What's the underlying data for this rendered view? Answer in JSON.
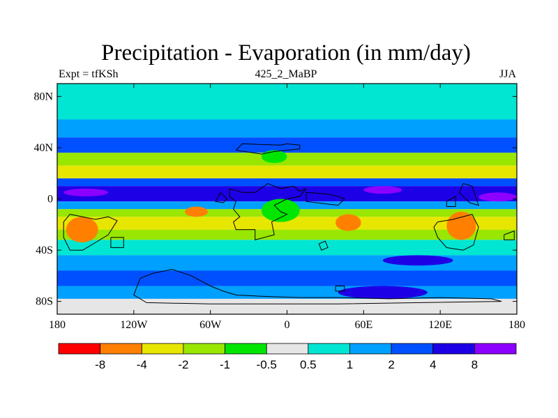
{
  "chart_data": {
    "type": "heatmap",
    "title": "Precipitation - Evaporation (in mm/day)",
    "subtitle_left": "Expt = tfKSh",
    "subtitle_center": "425_2_MaBP",
    "subtitle_right": "JJA",
    "x_range": [
      -180,
      180
    ],
    "y_range": [
      -90,
      90
    ],
    "x_ticks": [
      {
        "value": -180,
        "label": "180"
      },
      {
        "value": -120,
        "label": "120W"
      },
      {
        "value": -60,
        "label": "60W"
      },
      {
        "value": 0,
        "label": "0"
      },
      {
        "value": 60,
        "label": "60E"
      },
      {
        "value": 120,
        "label": "120E"
      },
      {
        "value": 180,
        "label": "180"
      }
    ],
    "y_ticks": [
      {
        "value": 80,
        "label": "80N"
      },
      {
        "value": 40,
        "label": "40N"
      },
      {
        "value": 0,
        "label": "0"
      },
      {
        "value": -40,
        "label": "40S"
      },
      {
        "value": -80,
        "label": "80S"
      }
    ],
    "colorbar": {
      "colors": [
        "#ff0000",
        "#ff7f00",
        "#e6e600",
        "#99e600",
        "#00e600",
        "#e6e6e6",
        "#00e6d2",
        "#00a0ff",
        "#0050ff",
        "#1e00e6",
        "#8c00ff"
      ],
      "labels": [
        "-8",
        "-4",
        "-2",
        "-1",
        "-0.5",
        "0.5",
        "1",
        "2",
        "4",
        "8"
      ],
      "levels": [
        -8,
        -4,
        -2,
        -1,
        -0.5,
        0.5,
        1,
        2,
        4,
        8
      ]
    },
    "zonal_bands": [
      {
        "lat_range": [
          62,
          90
        ],
        "value": 0.6
      },
      {
        "lat_range": [
          48,
          62
        ],
        "value": 1.5
      },
      {
        "lat_range": [
          36,
          48
        ],
        "value": 3
      },
      {
        "lat_range": [
          26,
          36
        ],
        "value": -1.3
      },
      {
        "lat_range": [
          16,
          26
        ],
        "value": -2.4
      },
      {
        "lat_range": [
          10,
          16
        ],
        "value": 2.5
      },
      {
        "lat_range": [
          -2,
          10
        ],
        "value": 6
      },
      {
        "lat_range": [
          -8,
          -2
        ],
        "value": 1.5
      },
      {
        "lat_range": [
          -14,
          -8
        ],
        "value": -1.3
      },
      {
        "lat_range": [
          -24,
          -14
        ],
        "value": -3
      },
      {
        "lat_range": [
          -32,
          -24
        ],
        "value": -1.5
      },
      {
        "lat_range": [
          -44,
          -32
        ],
        "value": 0.7
      },
      {
        "lat_range": [
          -56,
          -44
        ],
        "value": 1.5
      },
      {
        "lat_range": [
          -68,
          -56
        ],
        "value": 3
      },
      {
        "lat_range": [
          -78,
          -68
        ],
        "value": 1.5
      },
      {
        "lat_range": [
          -90,
          -78
        ],
        "value": 0.3
      }
    ],
    "features": [
      {
        "name": "dry-cell",
        "value": -5,
        "lon_range": [
          -173,
          -148
        ],
        "lat_range": [
          -34,
          -14
        ]
      },
      {
        "name": "dry-cell",
        "value": -5,
        "lon_range": [
          -80,
          -62
        ],
        "lat_range": [
          -14,
          -6
        ]
      },
      {
        "name": "dry-cell",
        "value": -5,
        "lon_range": [
          38,
          58
        ],
        "lat_range": [
          -25,
          -12
        ]
      },
      {
        "name": "dry-cell",
        "value": -5,
        "lon_range": [
          125,
          148
        ],
        "lat_range": [
          -32,
          -10
        ]
      },
      {
        "name": "wet-cell",
        "value": 9,
        "lon_range": [
          -175,
          -140
        ],
        "lat_range": [
          2,
          8
        ]
      },
      {
        "name": "wet-cell",
        "value": 9,
        "lon_range": [
          60,
          90
        ],
        "lat_range": [
          4,
          10
        ]
      },
      {
        "name": "wet-cell",
        "value": 9,
        "lon_range": [
          150,
          180
        ],
        "lat_range": [
          -2,
          5
        ]
      },
      {
        "name": "wet-patch",
        "value": 5,
        "lon_range": [
          75,
          130
        ],
        "lat_range": [
          -52,
          -44
        ]
      },
      {
        "name": "wet-patch",
        "value": 5,
        "lon_range": [
          40,
          110
        ],
        "lat_range": [
          -78,
          -68
        ]
      },
      {
        "name": "green-patch",
        "value": -0.7,
        "lon_range": [
          -20,
          10
        ],
        "lat_range": [
          -18,
          0
        ]
      },
      {
        "name": "green-patch",
        "value": -0.7,
        "lon_range": [
          -20,
          0
        ],
        "lat_range": [
          28,
          38
        ]
      }
    ],
    "coastlines": [
      [
        [
          -40,
          38
        ],
        [
          -35,
          43
        ],
        [
          -5,
          42
        ],
        [
          0,
          43
        ],
        [
          10,
          42
        ],
        [
          10,
          39
        ],
        [
          -10,
          37
        ],
        [
          -20,
          35
        ],
        [
          -40,
          38
        ]
      ],
      [
        [
          -45,
          8
        ],
        [
          -35,
          5
        ],
        [
          -25,
          5
        ],
        [
          -15,
          12
        ],
        [
          -5,
          8
        ],
        [
          5,
          10
        ],
        [
          10,
          6
        ],
        [
          15,
          8
        ],
        [
          10,
          2
        ],
        [
          0,
          0
        ],
        [
          -10,
          -5
        ],
        [
          -5,
          -10
        ],
        [
          0,
          -12
        ],
        [
          -12,
          -18
        ],
        [
          -10,
          -28
        ],
        [
          -25,
          -32
        ],
        [
          -25,
          -24
        ],
        [
          -40,
          -24
        ],
        [
          -42,
          -18
        ],
        [
          -37,
          -14
        ],
        [
          -42,
          -8
        ],
        [
          -40,
          -2
        ],
        [
          -45,
          2
        ],
        [
          -45,
          8
        ]
      ],
      [
        [
          15,
          5
        ],
        [
          30,
          4
        ],
        [
          40,
          2
        ],
        [
          45,
          0
        ],
        [
          40,
          -5
        ],
        [
          15,
          -2
        ],
        [
          15,
          5
        ]
      ],
      [
        [
          -170,
          -12
        ],
        [
          -160,
          -14
        ],
        [
          -150,
          -16
        ],
        [
          -140,
          -14
        ],
        [
          -133,
          -17
        ],
        [
          -140,
          -28
        ],
        [
          -160,
          -40
        ],
        [
          -170,
          -40
        ],
        [
          -175,
          -30
        ],
        [
          -175,
          -18
        ],
        [
          -170,
          -12
        ]
      ],
      [
        [
          -138,
          -30
        ],
        [
          -128,
          -30
        ],
        [
          -128,
          -38
        ],
        [
          -138,
          -38
        ],
        [
          -138,
          -30
        ]
      ],
      [
        [
          -105,
          -58
        ],
        [
          -90,
          -55
        ],
        [
          -75,
          -60
        ],
        [
          -60,
          -68
        ],
        [
          -50,
          -72
        ],
        [
          -40,
          -75
        ],
        [
          -20,
          -76
        ],
        [
          10,
          -77
        ],
        [
          40,
          -77
        ],
        [
          80,
          -78
        ],
        [
          120,
          -77
        ],
        [
          160,
          -78
        ],
        [
          168,
          -80
        ],
        [
          40,
          -82
        ],
        [
          -60,
          -82
        ],
        [
          -110,
          -81
        ],
        [
          -120,
          -75
        ],
        [
          -115,
          -62
        ],
        [
          -105,
          -58
        ]
      ],
      [
        [
          118,
          -18
        ],
        [
          130,
          -16
        ],
        [
          145,
          -12
        ],
        [
          150,
          -22
        ],
        [
          146,
          -36
        ],
        [
          138,
          -40
        ],
        [
          125,
          -38
        ],
        [
          118,
          -30
        ],
        [
          115,
          -22
        ],
        [
          118,
          -18
        ]
      ],
      [
        [
          138,
          12
        ],
        [
          145,
          10
        ],
        [
          150,
          -5
        ],
        [
          143,
          -3
        ],
        [
          135,
          5
        ],
        [
          138,
          12
        ]
      ],
      [
        [
          125,
          -2
        ],
        [
          132,
          2
        ],
        [
          132,
          -6
        ],
        [
          125,
          -6
        ],
        [
          125,
          -2
        ]
      ],
      [
        [
          -52,
          5
        ],
        [
          -47,
          0
        ],
        [
          -50,
          -3
        ],
        [
          -56,
          -2
        ],
        [
          -52,
          5
        ]
      ],
      [
        [
          25,
          -35
        ],
        [
          30,
          -33
        ],
        [
          32,
          -38
        ],
        [
          27,
          -40
        ],
        [
          25,
          -35
        ]
      ],
      [
        [
          38,
          -68
        ],
        [
          45,
          -68
        ],
        [
          45,
          -72
        ],
        [
          38,
          -72
        ],
        [
          38,
          -68
        ]
      ],
      [
        [
          170,
          -28
        ],
        [
          178,
          -25
        ],
        [
          178,
          -32
        ],
        [
          170,
          -32
        ],
        [
          170,
          -28
        ]
      ]
    ]
  }
}
